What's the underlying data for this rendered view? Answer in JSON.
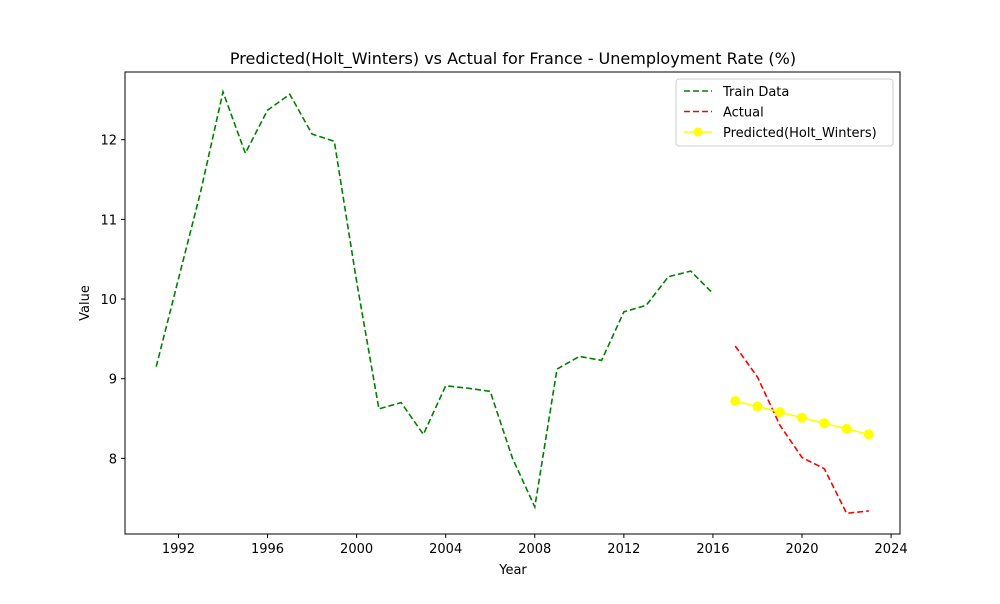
{
  "chart_data": {
    "type": "line",
    "title": "Predicted(Holt_Winters) vs Actual for France - Unemployment Rate (%)",
    "xlabel": "Year",
    "ylabel": "Value",
    "xlim": [
      1989.6,
      2024.4
    ],
    "ylim": [
      7.05,
      12.85
    ],
    "xticks": [
      1992,
      1996,
      2000,
      2004,
      2008,
      2012,
      2016,
      2020,
      2024
    ],
    "yticks": [
      8,
      9,
      10,
      11,
      12
    ],
    "grid": false,
    "legend_position": "top-right",
    "series": [
      {
        "name": "Train Data",
        "color": "#008000",
        "style": "dashed",
        "marker": "none",
        "x": [
          1991,
          1992,
          1993,
          1994,
          1995,
          1996,
          1997,
          1998,
          1999,
          2000,
          2001,
          2002,
          2003,
          2004,
          2005,
          2006,
          2007,
          2008,
          2009,
          2010,
          2011,
          2012,
          2013,
          2014,
          2015,
          2016
        ],
        "y": [
          9.15,
          10.25,
          11.35,
          12.6,
          11.83,
          12.37,
          12.57,
          12.07,
          11.98,
          10.22,
          8.62,
          8.7,
          8.3,
          8.91,
          8.88,
          8.84,
          8.0,
          7.39,
          9.12,
          9.28,
          9.23,
          9.84,
          9.92,
          10.28,
          10.35,
          10.07
        ]
      },
      {
        "name": "Actual",
        "color": "#ff0000",
        "style": "dashed",
        "marker": "none",
        "x": [
          2017,
          2018,
          2019,
          2020,
          2021,
          2022,
          2023
        ],
        "y": [
          9.41,
          9.02,
          8.42,
          8.01,
          7.87,
          7.31,
          7.34
        ]
      },
      {
        "name": "Predicted(Holt_Winters)",
        "color": "#ffff00",
        "style": "solid",
        "marker": "circle",
        "x": [
          2017,
          2018,
          2019,
          2020,
          2021,
          2022,
          2023
        ],
        "y": [
          8.72,
          8.65,
          8.58,
          8.51,
          8.44,
          8.37,
          8.3
        ]
      }
    ]
  }
}
